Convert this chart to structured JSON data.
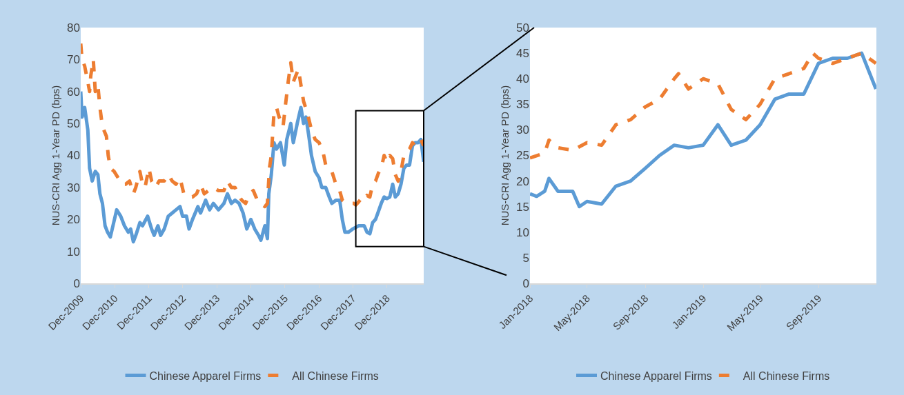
{
  "chart_data": [
    {
      "type": "line",
      "ylabel": "NUS-CRI Agg 1-Year PD (bps)",
      "xlim": [
        "2009-12-01",
        "2019-12-31"
      ],
      "xticks": [
        {
          "value": "2009-12-01",
          "label": "Dec-2009"
        },
        {
          "value": "2010-12-01",
          "label": "Dec-2010"
        },
        {
          "value": "2011-12-01",
          "label": "Dec-2011"
        },
        {
          "value": "2012-12-01",
          "label": "Dec-2012"
        },
        {
          "value": "2013-12-01",
          "label": "Dec-2013"
        },
        {
          "value": "2014-12-01",
          "label": "Dec-2014"
        },
        {
          "value": "2015-12-01",
          "label": "Dec-2015"
        },
        {
          "value": "2016-12-01",
          "label": "Dec-2016"
        },
        {
          "value": "2017-12-01",
          "label": "Dec-2017"
        },
        {
          "value": "2018-12-01",
          "label": "Dec-2018"
        }
      ],
      "ylim": [
        0,
        80
      ],
      "yticks": [
        0,
        10,
        20,
        30,
        40,
        50,
        60,
        70,
        80
      ],
      "grid": false,
      "legend": "bottom",
      "series": [
        {
          "name": "Chinese Apparel Firms",
          "color": "#5b9bd5",
          "line_style": "solid",
          "x": [
            "2009-12-01",
            "2009-12-15",
            "2010-01-12",
            "2010-02-15",
            "2010-03-06",
            "2010-04-03",
            "2010-05-06",
            "2010-06-03",
            "2010-06-25",
            "2010-07-22",
            "2010-08-19",
            "2010-09-15",
            "2010-10-15",
            "2010-11-12",
            "2010-12-22",
            "2011-02-03",
            "2011-03-15",
            "2011-04-25",
            "2011-05-21",
            "2011-06-19",
            "2011-07-15",
            "2011-08-28",
            "2011-09-25",
            "2011-11-19",
            "2012-01-01",
            "2012-01-28",
            "2012-03-09",
            "2012-04-06",
            "2012-05-15",
            "2012-06-28",
            "2012-08-09",
            "2012-09-19",
            "2012-11-01",
            "2012-11-28",
            "2013-01-09",
            "2013-02-06",
            "2013-03-15",
            "2013-05-12",
            "2013-06-09",
            "2013-08-03",
            "2013-09-15",
            "2013-10-25",
            "2013-12-19",
            "2014-02-15",
            "2014-03-25",
            "2014-05-06",
            "2014-06-15",
            "2014-07-28",
            "2014-09-09",
            "2014-10-19",
            "2014-12-01",
            "2015-01-12",
            "2015-02-22",
            "2015-03-19",
            "2015-05-01",
            "2015-05-28",
            "2015-06-12",
            "2015-07-09",
            "2015-08-06",
            "2015-09-03",
            "2015-10-15",
            "2015-11-25",
            "2015-12-22",
            "2016-02-03",
            "2016-03-01",
            "2016-04-12",
            "2016-05-22",
            "2016-06-19",
            "2016-07-15",
            "2016-08-15",
            "2016-09-12",
            "2016-10-22",
            "2016-12-03",
            "2017-01-01",
            "2017-02-12",
            "2017-03-22",
            "2017-04-19",
            "2017-06-01",
            "2017-07-12",
            "2017-08-09",
            "2017-09-06",
            "2017-10-15",
            "2017-11-28",
            "2018-01-01",
            "2018-02-01",
            "2018-03-01",
            "2018-04-01",
            "2018-05-01",
            "2018-06-01",
            "2018-07-01",
            "2018-08-01",
            "2018-09-01",
            "2018-10-01",
            "2018-11-01",
            "2018-12-01",
            "2019-01-01",
            "2019-02-01",
            "2019-03-01",
            "2019-04-01",
            "2019-05-01",
            "2019-06-01",
            "2019-07-01",
            "2019-08-01",
            "2019-09-01",
            "2019-10-01",
            "2019-11-01",
            "2019-12-01",
            "2019-12-31"
          ],
          "values": [
            60,
            52,
            55,
            48,
            36,
            32,
            35,
            34,
            28,
            25,
            18,
            16,
            14.5,
            18,
            23,
            21,
            18,
            16,
            17,
            13,
            15,
            19,
            18,
            21,
            17,
            15,
            18,
            15,
            17,
            21,
            22,
            23,
            24,
            21,
            21,
            17,
            20,
            24,
            22,
            26,
            23,
            25,
            23,
            25,
            28,
            25,
            26,
            25,
            22,
            17,
            20,
            17,
            15,
            13.5,
            18,
            14,
            28,
            34,
            44,
            42,
            44,
            37,
            45,
            50,
            44,
            50,
            55,
            50,
            52,
            46,
            40,
            35,
            33,
            30,
            30,
            27,
            25,
            26,
            26,
            20,
            16,
            16,
            17,
            17.5,
            18,
            18,
            18,
            16,
            15.5,
            19,
            20,
            22.5,
            25,
            27,
            26.5,
            27,
            31,
            27,
            28,
            31,
            36,
            37,
            37,
            43,
            44,
            44,
            45,
            38
          ]
        },
        {
          "name": "All Chinese Firms",
          "color": "#ed7d31",
          "line_style": "dashed",
          "x": [
            "2009-12-01",
            "2009-12-15",
            "2010-01-12",
            "2010-02-15",
            "2010-03-06",
            "2010-03-19",
            "2010-04-15",
            "2010-05-06",
            "2010-06-03",
            "2010-06-25",
            "2010-07-22",
            "2010-09-03",
            "2010-09-22",
            "2010-10-15",
            "2010-11-25",
            "2011-01-06",
            "2011-02-15",
            "2011-03-28",
            "2011-05-09",
            "2011-06-19",
            "2011-07-15",
            "2011-08-28",
            "2011-09-25",
            "2011-10-22",
            "2011-12-03",
            "2012-01-01",
            "2012-02-12",
            "2012-03-22",
            "2012-05-15",
            "2012-06-28",
            "2012-08-09",
            "2012-09-19",
            "2012-11-01",
            "2012-12-12",
            "2013-01-22",
            "2013-03-15",
            "2013-04-28",
            "2013-06-09",
            "2013-07-19",
            "2013-09-01",
            "2013-10-25",
            "2013-12-19",
            "2014-02-15",
            "2014-03-25",
            "2014-05-06",
            "2014-06-15",
            "2014-07-15",
            "2014-08-25",
            "2014-10-06",
            "2014-11-15",
            "2014-12-28",
            "2015-02-09",
            "2015-03-19",
            "2015-05-01",
            "2015-05-28",
            "2015-06-19",
            "2015-07-09",
            "2015-08-06",
            "2015-09-03",
            "2015-10-01",
            "2015-11-12",
            "2015-12-09",
            "2016-01-06",
            "2016-02-03",
            "2016-03-01",
            "2016-03-28",
            "2016-04-25",
            "2016-05-22",
            "2016-06-19",
            "2016-08-01",
            "2016-09-12",
            "2016-10-22",
            "2016-12-03",
            "2017-01-15",
            "2017-02-12",
            "2017-03-09",
            "2017-04-19",
            "2017-06-01",
            "2017-07-12",
            "2017-08-09",
            "2017-09-19",
            "2017-11-01",
            "2017-12-12",
            "2018-01-01",
            "2018-02-01",
            "2018-03-01",
            "2018-04-01",
            "2018-05-01",
            "2018-06-01",
            "2018-07-01",
            "2018-08-01",
            "2018-09-01",
            "2018-10-01",
            "2018-11-01",
            "2018-12-01",
            "2019-01-01",
            "2019-02-01",
            "2019-03-01",
            "2019-04-01",
            "2019-05-01",
            "2019-06-01",
            "2019-07-01",
            "2019-08-01",
            "2019-09-01",
            "2019-10-01",
            "2019-11-01",
            "2019-12-01",
            "2019-12-31"
          ],
          "values": [
            75,
            70,
            68,
            63,
            60,
            65,
            70,
            60,
            62,
            55,
            49,
            46,
            40,
            36,
            35,
            33,
            31,
            31,
            32,
            28,
            30,
            35,
            31,
            30,
            36,
            32,
            30,
            32,
            32,
            34,
            32,
            31,
            33,
            28,
            27,
            27,
            28,
            31,
            28,
            29,
            30,
            29,
            29,
            32,
            30,
            30,
            28,
            26,
            25,
            28,
            29,
            26,
            25,
            24,
            25,
            36,
            40,
            53,
            55,
            52,
            49,
            56,
            63,
            69,
            63,
            65,
            67,
            62,
            57,
            53,
            48,
            45,
            44,
            41,
            37,
            36,
            35,
            31,
            29,
            26,
            25,
            25,
            25,
            24.5,
            25.5,
            26.5,
            26,
            27.5,
            27,
            31,
            32,
            34.5,
            36,
            40,
            38,
            40,
            39,
            34,
            32,
            35,
            40,
            41,
            42,
            44,
            43,
            44,
            45,
            43
          ]
        }
      ]
    },
    {
      "type": "line",
      "ylabel": "NUS-CRI Agg 1-Year PD (bps)",
      "xlim": [
        "2018-01-01",
        "2020-01-01"
      ],
      "xticks": [
        {
          "value": "2018-01-01",
          "label": "Jan-2018"
        },
        {
          "value": "2018-05-01",
          "label": "May-2018"
        },
        {
          "value": "2018-09-01",
          "label": "Sep-2018"
        },
        {
          "value": "2019-01-01",
          "label": "Jan-2019"
        },
        {
          "value": "2019-05-01",
          "label": "May-2019"
        },
        {
          "value": "2019-09-01",
          "label": "Sep-2019"
        }
      ],
      "ylim": [
        0,
        50
      ],
      "yticks": [
        0,
        5,
        10,
        15,
        20,
        25,
        30,
        35,
        40,
        45,
        50
      ],
      "grid": false,
      "legend": "bottom",
      "series": [
        {
          "name": "Chinese Apparel Firms",
          "color": "#5b9bd5",
          "line_style": "solid",
          "x": [
            "2018-01-01",
            "2018-01-15",
            "2018-02-01",
            "2018-02-10",
            "2018-03-01",
            "2018-04-01",
            "2018-04-15",
            "2018-05-01",
            "2018-06-01",
            "2018-07-01",
            "2018-08-01",
            "2018-09-01",
            "2018-10-01",
            "2018-11-01",
            "2018-12-01",
            "2019-01-01",
            "2019-02-01",
            "2019-03-01",
            "2019-04-01",
            "2019-05-01",
            "2019-06-01",
            "2019-07-01",
            "2019-08-01",
            "2019-09-01",
            "2019-10-01",
            "2019-11-01",
            "2019-12-01",
            "2019-12-31"
          ],
          "values": [
            17.5,
            17,
            18,
            20.5,
            18,
            18,
            15,
            16,
            15.5,
            19,
            20,
            22.5,
            25,
            27,
            26.5,
            27,
            31,
            27,
            28,
            31,
            36,
            37,
            37,
            43,
            44,
            44,
            45,
            38
          ]
        },
        {
          "name": "All Chinese Firms",
          "color": "#ed7d31",
          "line_style": "dashed",
          "x": [
            "2018-01-01",
            "2018-02-01",
            "2018-02-10",
            "2018-03-01",
            "2018-04-01",
            "2018-05-01",
            "2018-06-01",
            "2018-07-01",
            "2018-08-01",
            "2018-09-01",
            "2018-10-01",
            "2018-11-01",
            "2018-11-10",
            "2018-12-01",
            "2019-01-01",
            "2019-02-01",
            "2019-03-01",
            "2019-04-01",
            "2019-05-01",
            "2019-06-01",
            "2019-07-01",
            "2019-08-01",
            "2019-08-20",
            "2019-09-01",
            "2019-10-01",
            "2019-11-01",
            "2019-12-01",
            "2019-12-31"
          ],
          "values": [
            24.5,
            25.5,
            28,
            26.5,
            26,
            27.5,
            27,
            31,
            32,
            34.5,
            36,
            40,
            41,
            38,
            40,
            39,
            34,
            32,
            35,
            40,
            41,
            42,
            45,
            44,
            43,
            44,
            45,
            43
          ]
        }
      ]
    }
  ]
}
